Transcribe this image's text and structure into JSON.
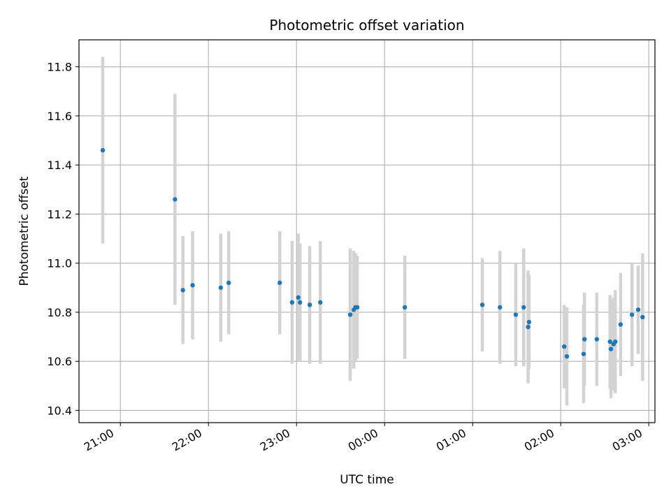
{
  "chart_data": {
    "type": "scatter",
    "title": "Photometric offset variation",
    "xlabel": "UTC time",
    "ylabel": "Photometric offset",
    "x_unit": "UTC time of day (hours after midnight; values above 24 fall on the following day)",
    "xlim": [
      20.53,
      27.07
    ],
    "ylim": [
      10.35,
      11.91
    ],
    "grid": true,
    "x_ticks": [
      {
        "x": 21,
        "label": "21:00"
      },
      {
        "x": 22,
        "label": "22:00"
      },
      {
        "x": 23,
        "label": "23:00"
      },
      {
        "x": 24,
        "label": "00:00"
      },
      {
        "x": 25,
        "label": "01:00"
      },
      {
        "x": 26,
        "label": "02:00"
      },
      {
        "x": 27,
        "label": "03:00"
      }
    ],
    "y_ticks": [
      {
        "y": 10.4,
        "label": "10.4"
      },
      {
        "y": 10.6,
        "label": "10.6"
      },
      {
        "y": 10.8,
        "label": "10.8"
      },
      {
        "y": 11.0,
        "label": "11.0"
      },
      {
        "y": 11.2,
        "label": "11.2"
      },
      {
        "y": 11.4,
        "label": "11.4"
      },
      {
        "y": 11.6,
        "label": "11.6"
      },
      {
        "y": 11.8,
        "label": "11.8"
      }
    ],
    "colors": {
      "point": "#1f77b4",
      "errorbar": "#d3d3d3",
      "grid": "#b0b0b0"
    },
    "points": [
      {
        "x": 20.8,
        "y": 11.46,
        "err": 0.38
      },
      {
        "x": 21.62,
        "y": 11.26,
        "err": 0.43
      },
      {
        "x": 21.71,
        "y": 10.89,
        "err": 0.22
      },
      {
        "x": 21.82,
        "y": 10.91,
        "err": 0.22
      },
      {
        "x": 22.14,
        "y": 10.9,
        "err": 0.22
      },
      {
        "x": 22.23,
        "y": 10.92,
        "err": 0.21
      },
      {
        "x": 22.81,
        "y": 10.92,
        "err": 0.21
      },
      {
        "x": 22.95,
        "y": 10.84,
        "err": 0.25
      },
      {
        "x": 23.02,
        "y": 10.86,
        "err": 0.26
      },
      {
        "x": 23.04,
        "y": 10.84,
        "err": 0.24
      },
      {
        "x": 23.15,
        "y": 10.83,
        "err": 0.24
      },
      {
        "x": 23.27,
        "y": 10.84,
        "err": 0.25
      },
      {
        "x": 23.61,
        "y": 10.79,
        "err": 0.27
      },
      {
        "x": 23.65,
        "y": 10.81,
        "err": 0.24
      },
      {
        "x": 23.67,
        "y": 10.82,
        "err": 0.22
      },
      {
        "x": 23.69,
        "y": 10.82,
        "err": 0.21
      },
      {
        "x": 24.23,
        "y": 10.82,
        "err": 0.21
      },
      {
        "x": 25.11,
        "y": 10.83,
        "err": 0.19
      },
      {
        "x": 25.31,
        "y": 10.82,
        "err": 0.23
      },
      {
        "x": 25.49,
        "y": 10.79,
        "err": 0.21
      },
      {
        "x": 25.58,
        "y": 10.82,
        "err": 0.24
      },
      {
        "x": 25.63,
        "y": 10.74,
        "err": 0.23
      },
      {
        "x": 25.64,
        "y": 10.76,
        "err": 0.19
      },
      {
        "x": 26.04,
        "y": 10.66,
        "err": 0.17
      },
      {
        "x": 26.07,
        "y": 10.62,
        "err": 0.2
      },
      {
        "x": 26.26,
        "y": 10.63,
        "err": 0.2
      },
      {
        "x": 26.27,
        "y": 10.69,
        "err": 0.19
      },
      {
        "x": 26.41,
        "y": 10.69,
        "err": 0.19
      },
      {
        "x": 26.56,
        "y": 10.68,
        "err": 0.19
      },
      {
        "x": 26.57,
        "y": 10.65,
        "err": 0.2
      },
      {
        "x": 26.6,
        "y": 10.67,
        "err": 0.19
      },
      {
        "x": 26.62,
        "y": 10.68,
        "err": 0.21
      },
      {
        "x": 26.68,
        "y": 10.75,
        "err": 0.21
      },
      {
        "x": 26.81,
        "y": 10.79,
        "err": 0.21
      },
      {
        "x": 26.88,
        "y": 10.81,
        "err": 0.18
      },
      {
        "x": 26.93,
        "y": 10.78,
        "err": 0.26
      }
    ]
  }
}
